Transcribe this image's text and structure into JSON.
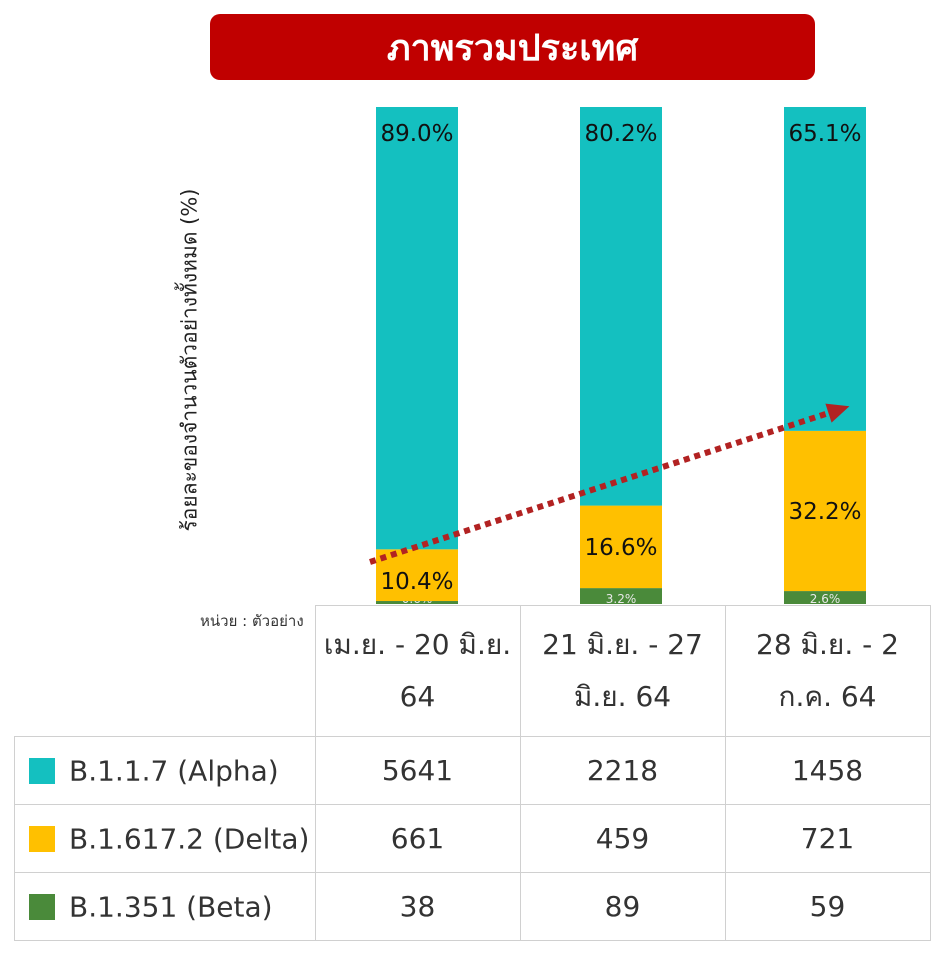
{
  "title": "ภาพรวมประเทศ",
  "unit_label": "หน่วย : ตัวอย่าง",
  "colors": {
    "alpha": "#14c0c0",
    "delta": "#ffc000",
    "beta": "#4a8a3a",
    "banner": "#c00000",
    "trend_arrow": "#b22222"
  },
  "table": {
    "headers": [
      "เม.ย. - 20 มิ.ย. 64",
      "21 มิ.ย. - 27 มิ.ย. 64",
      "28 มิ.ย. - 2 ก.ค. 64"
    ],
    "rows": [
      {
        "label": "B.1.1.7 (Alpha)",
        "values": [
          "5641",
          "2218",
          "1458"
        ]
      },
      {
        "label": "B.1.617.2 (Delta)",
        "values": [
          "661",
          "459",
          "721"
        ]
      },
      {
        "label": "B.1.351 (Beta)",
        "values": [
          "38",
          "89",
          "59"
        ]
      }
    ]
  },
  "chart_data": {
    "type": "bar",
    "stacked": true,
    "title": "ภาพรวมประเทศ",
    "ylabel": "ร้อยละของจำนวนตัวอย่างทั้งหมด (%)",
    "ylim": [
      0,
      100
    ],
    "grid": false,
    "categories": [
      "เม.ย. - 20 มิ.ย. 64",
      "21 มิ.ย. - 27 มิ.ย. 64",
      "28 มิ.ย. - 2 ก.ค. 64"
    ],
    "series": [
      {
        "name": "B.1.351 (Beta)",
        "values": [
          0.6,
          3.2,
          2.6
        ],
        "labels": [
          "0.6%",
          "3.2%",
          "2.6%"
        ]
      },
      {
        "name": "B.1.617.2 (Delta)",
        "values": [
          10.4,
          16.6,
          32.2
        ],
        "labels": [
          "10.4%",
          "16.6%",
          "32.2%"
        ]
      },
      {
        "name": "B.1.1.7 (Alpha)",
        "values": [
          89.0,
          80.2,
          65.1
        ],
        "labels": [
          "89.0%",
          "80.2%",
          "65.1%"
        ]
      }
    ],
    "annotation": "dotted red trend arrow rising across the Delta segments"
  }
}
